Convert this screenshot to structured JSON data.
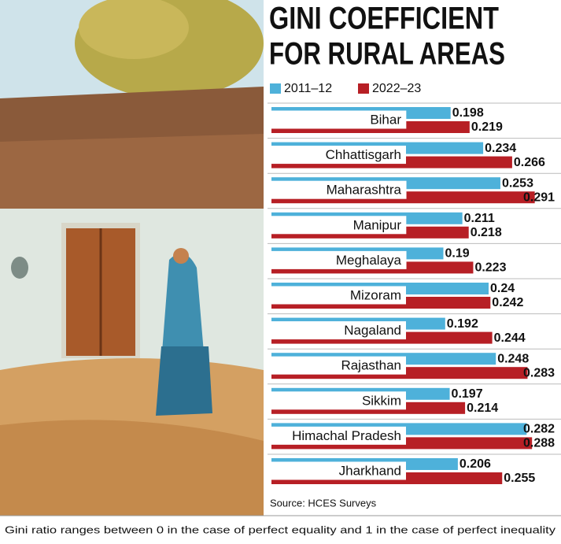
{
  "chart_data": {
    "type": "bar",
    "orientation": "horizontal",
    "title": [
      "GINI COEFFICIENT",
      "FOR RURAL AREAS"
    ],
    "categories": [
      "Bihar",
      "Chhattisgarh",
      "Maharashtra",
      "Manipur",
      "Meghalaya",
      "Mizoram",
      "Nagaland",
      "Rajasthan",
      "Sikkim",
      "Himachal Pradesh",
      "Jharkhand"
    ],
    "series": [
      {
        "name": "2011–12",
        "color": "#4eb1da",
        "values": [
          0.198,
          0.234,
          0.253,
          0.211,
          0.19,
          0.24,
          0.192,
          0.248,
          0.197,
          0.282,
          0.206
        ]
      },
      {
        "name": "2022–23",
        "color": "#b71f25",
        "values": [
          0.219,
          0.266,
          0.291,
          0.218,
          0.223,
          0.242,
          0.244,
          0.283,
          0.214,
          0.288,
          0.255
        ]
      }
    ],
    "xlim": [
      0,
      0.3
    ],
    "source": "Source: HCES Surveys",
    "note": "Gini ratio ranges between 0 in the case of perfect equality and 1 in the case of perfect inequality"
  }
}
